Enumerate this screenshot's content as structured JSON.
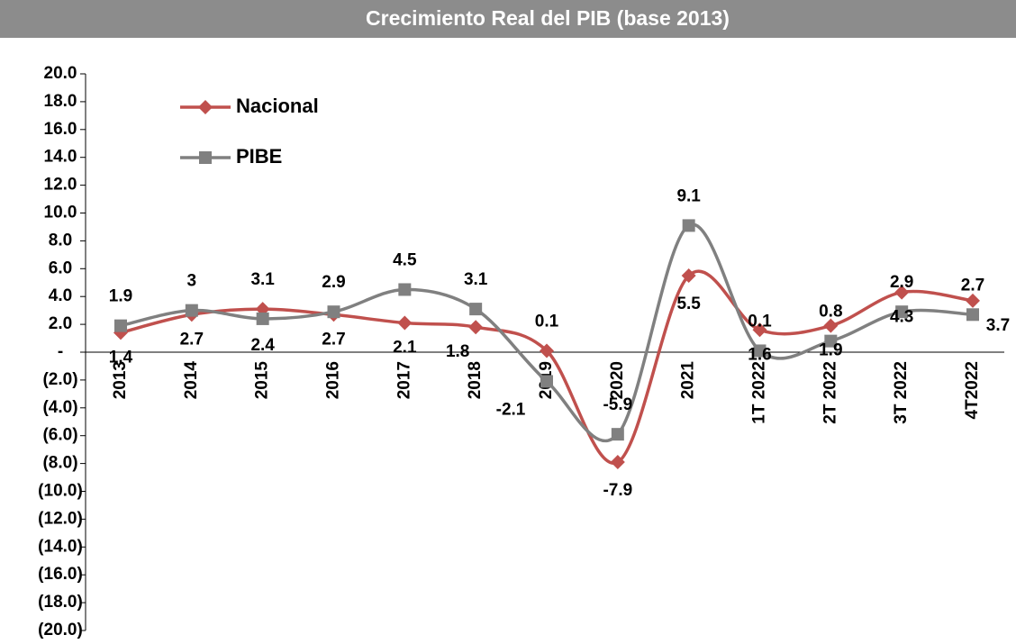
{
  "chart_data": {
    "type": "line",
    "title": "Crecimiento Real del PIB (base 2013)",
    "categories": [
      "2013",
      "2014",
      "2015",
      "2016",
      "2017",
      "2018",
      "2019",
      "2020",
      "2021",
      "1T 2022",
      "2T 2022",
      "3T 2022",
      "4T2022"
    ],
    "series": [
      {
        "name": "Nacional",
        "color": "#c0504d",
        "marker": "diamond",
        "values": [
          1.4,
          2.7,
          3.1,
          2.7,
          2.1,
          1.8,
          0.1,
          -7.9,
          5.5,
          1.6,
          1.9,
          4.3,
          3.7
        ]
      },
      {
        "name": "PIBE",
        "color": "#808080",
        "marker": "square",
        "values": [
          1.9,
          3,
          2.4,
          2.9,
          4.5,
          3.1,
          -2.1,
          -5.9,
          9.1,
          0.1,
          0.8,
          2.9,
          2.7
        ]
      }
    ],
    "ylim": [
      -20,
      20
    ],
    "yticks": [
      {
        "value": 20,
        "label": "20.0"
      },
      {
        "value": 18,
        "label": "18.0"
      },
      {
        "value": 16,
        "label": "16.0"
      },
      {
        "value": 14,
        "label": "14.0"
      },
      {
        "value": 12,
        "label": "12.0"
      },
      {
        "value": 10,
        "label": "10.0"
      },
      {
        "value": 8,
        "label": "8.0"
      },
      {
        "value": 6,
        "label": "6.0"
      },
      {
        "value": 4,
        "label": "4.0"
      },
      {
        "value": 2,
        "label": "2.0"
      },
      {
        "value": 0,
        "label": "-"
      },
      {
        "value": -2,
        "label": "(2.0)"
      },
      {
        "value": -4,
        "label": "(4.0)"
      },
      {
        "value": -6,
        "label": "(6.0)"
      },
      {
        "value": -8,
        "label": "(8.0)"
      },
      {
        "value": -10,
        "label": "(10.0)"
      },
      {
        "value": -12,
        "label": "(12.0)"
      },
      {
        "value": -14,
        "label": "(14.0)"
      },
      {
        "value": -16,
        "label": "(16.0)"
      },
      {
        "value": -18,
        "label": "(18.0)"
      },
      {
        "value": -20,
        "label": "(20.0)"
      }
    ],
    "grid": false,
    "legend": "upper left"
  }
}
